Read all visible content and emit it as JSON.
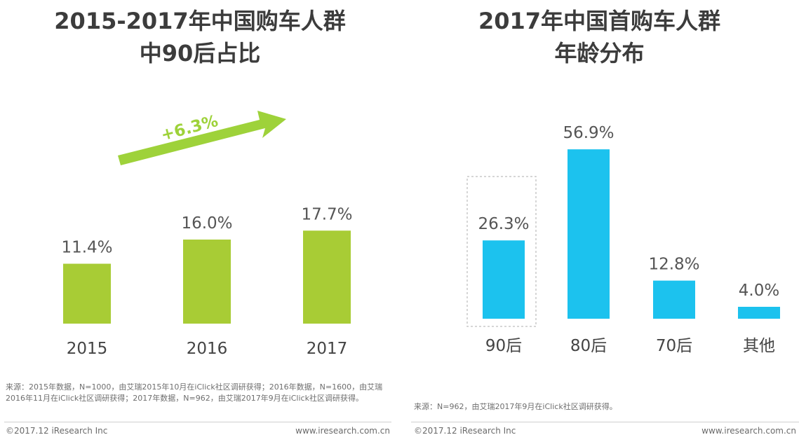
{
  "colors": {
    "green": "#A8CC35",
    "blue": "#1CC2EE",
    "arrow": "#9ED23A",
    "highlight_box": "#c8c8c8"
  },
  "left": {
    "title_line1": "2015-2017年中国购车人群",
    "title_line2": "中90后占比",
    "growth_label": "+6.3%",
    "source": "来源：2015年数据，N=1000，由艾瑞2015年10月在iClick社区调研获得；2016年数据，N=1600，由艾瑞2016年11月在iClick社区调研获得；2017年数据，N=962，由艾瑞2017年9月在iClick社区调研获得。",
    "footer_copyright": "©2017.12 iResearch Inc",
    "footer_url": "www.iresearch.com.cn"
  },
  "right": {
    "title_line1": "2017年中国首购车人群",
    "title_line2": "年龄分布",
    "source": "来源：N=962，由艾瑞2017年9月在iClick社区调研获得。",
    "footer_copyright": "©2017.12 iResearch Inc",
    "footer_url": "www.iresearch.com.cn"
  },
  "chart_data": [
    {
      "type": "bar",
      "title": "2015-2017年中国购车人群中90后占比",
      "categories": [
        "2015",
        "2016",
        "2017"
      ],
      "values": [
        11.4,
        16.0,
        17.7
      ],
      "value_labels": [
        "11.4%",
        "16.0%",
        "17.7%"
      ],
      "annotation": "+6.3%",
      "xlabel": "",
      "ylabel": "",
      "ylim": [
        0,
        20
      ]
    },
    {
      "type": "bar",
      "title": "2017年中国首购车人群年龄分布",
      "categories": [
        "90后",
        "80后",
        "70后",
        "其他"
      ],
      "values": [
        26.3,
        56.9,
        12.8,
        4.0
      ],
      "value_labels": [
        "26.3%",
        "56.9%",
        "12.8%",
        "4.0%"
      ],
      "highlighted_category": "90后",
      "xlabel": "",
      "ylabel": "",
      "ylim": [
        0,
        60
      ]
    }
  ]
}
